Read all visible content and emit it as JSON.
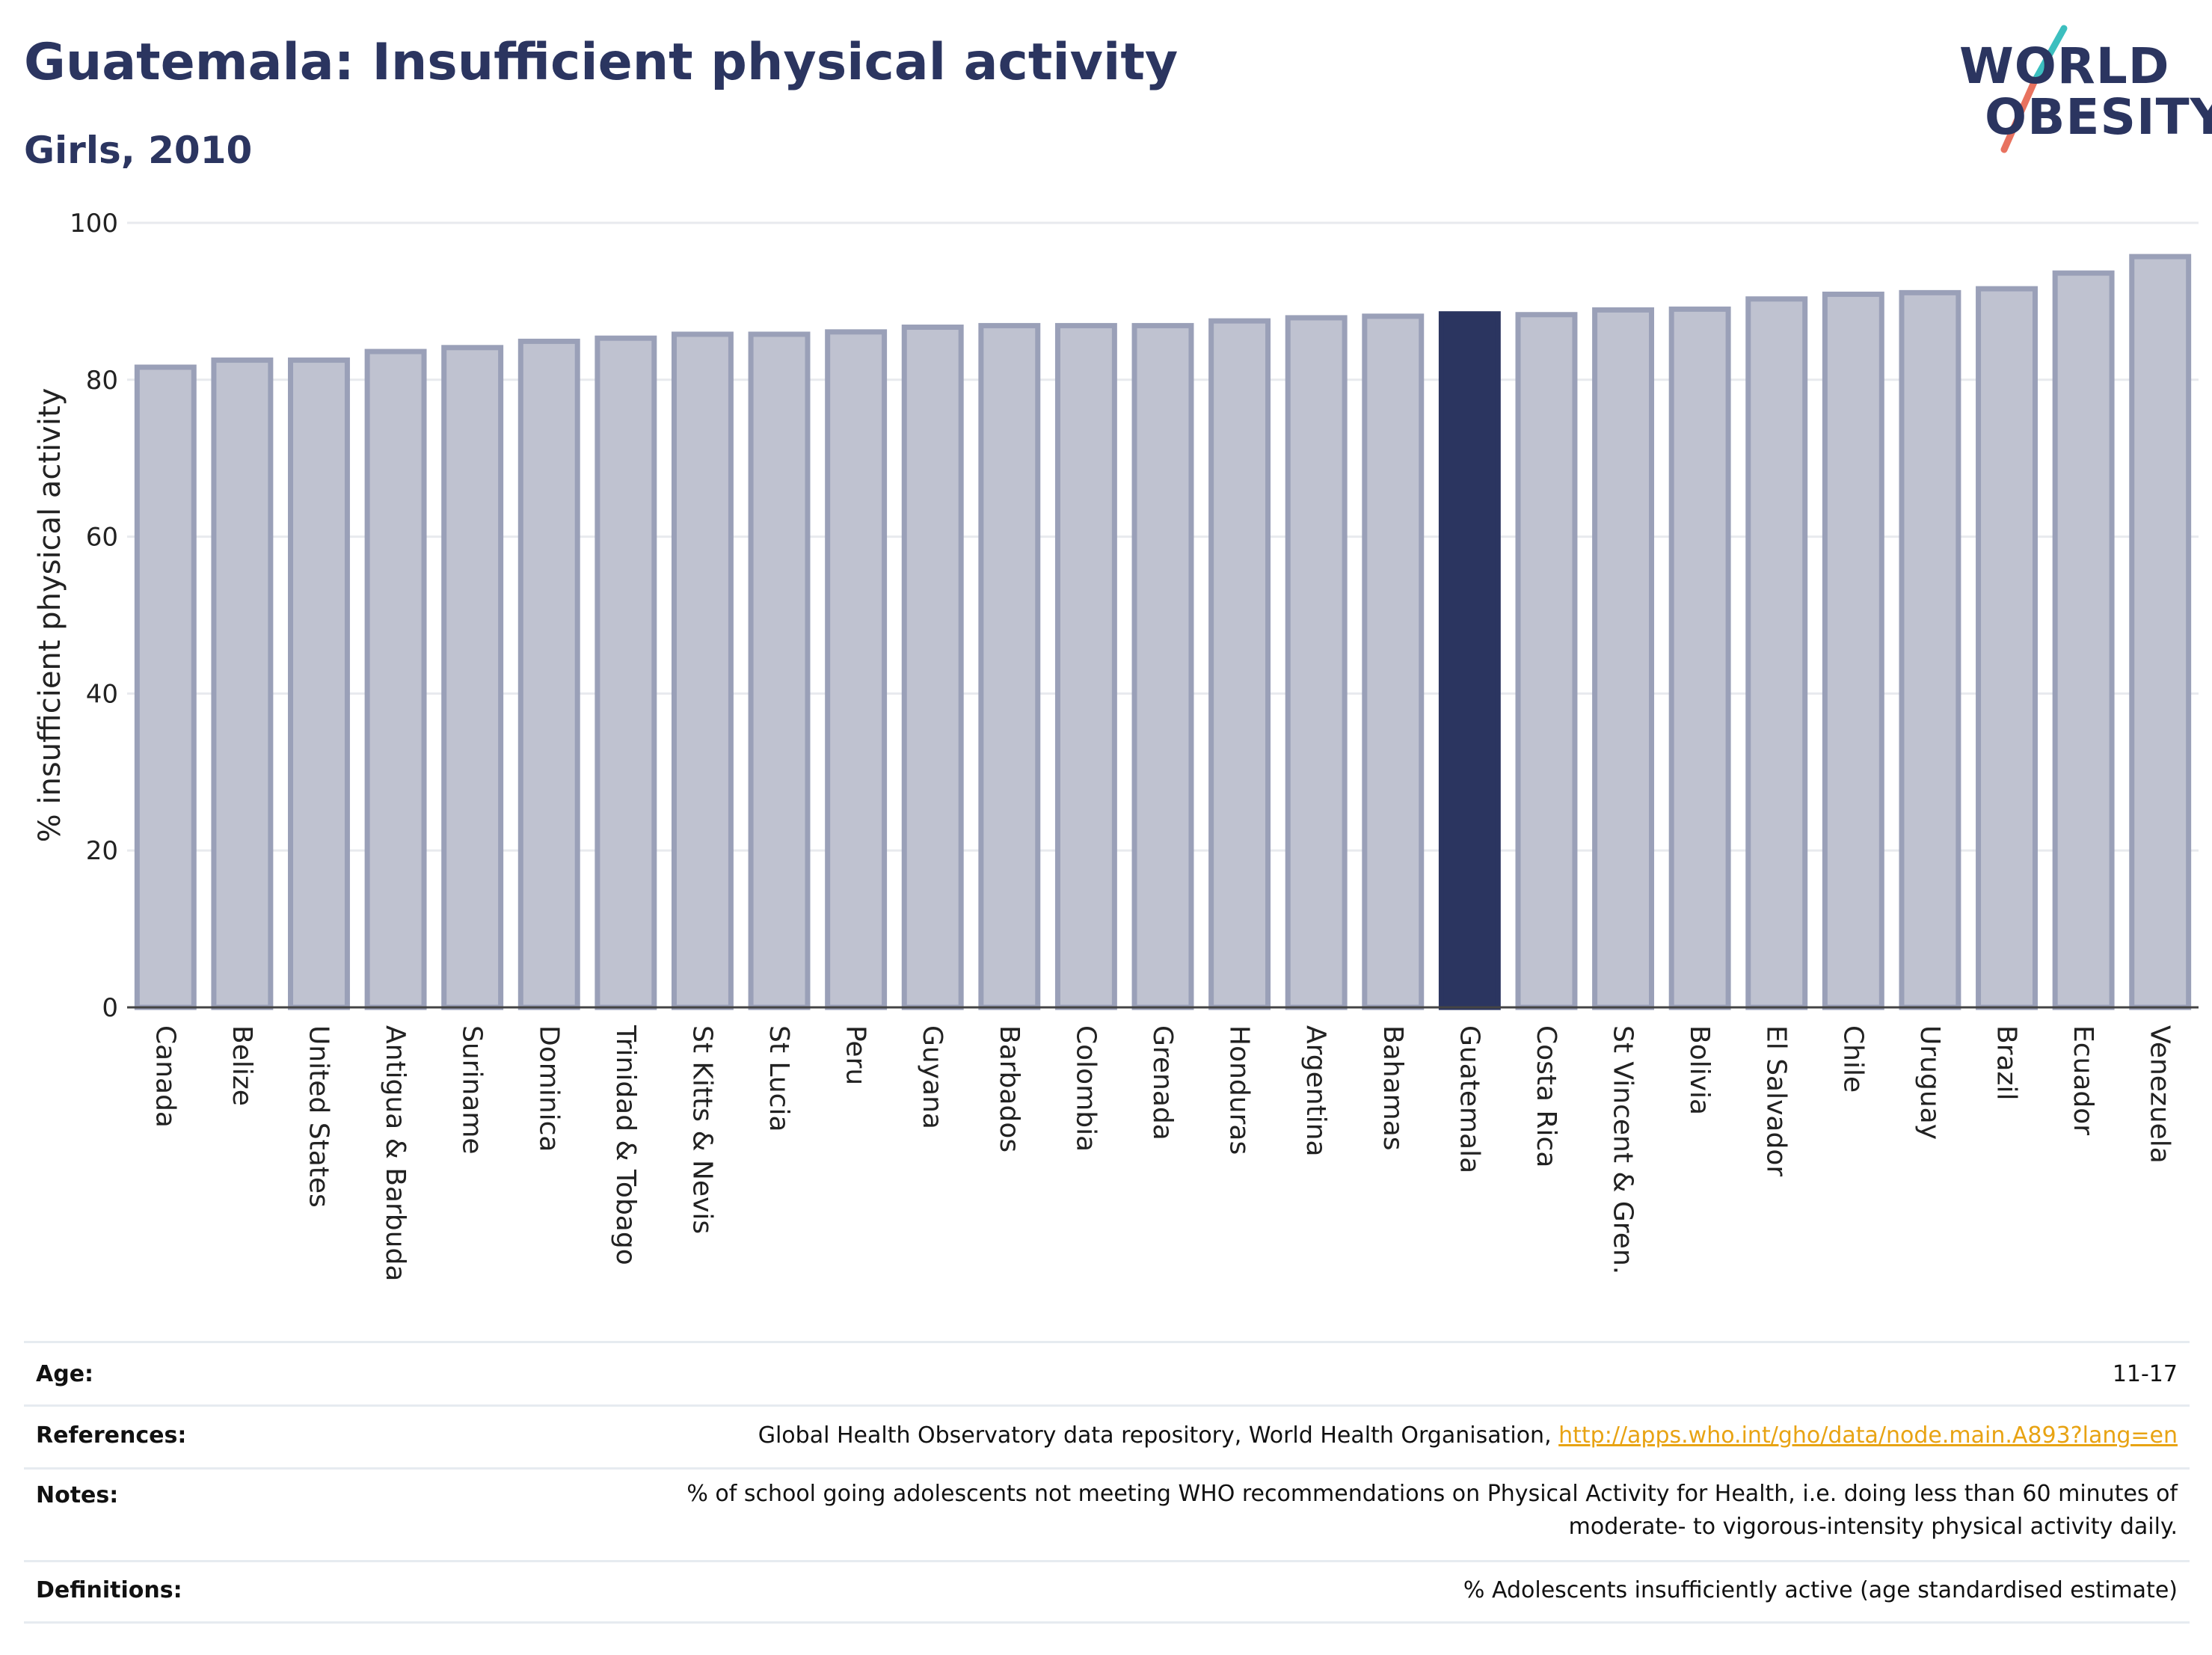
{
  "header": {
    "title": "Guatemala: Insufficient physical activity",
    "subtitle": "Girls, 2010"
  },
  "logo": {
    "line1": "WORLD",
    "line2": "OBESITY",
    "accent_colors": [
      "#3cbfbf",
      "#e8725f"
    ]
  },
  "colors": {
    "bar": "#bfc2d0",
    "bar_border": "#9aa0b8",
    "highlight": "#2b3560",
    "grid": "#e8eaee",
    "axis": "#444444"
  },
  "chart_data": {
    "type": "bar",
    "ylabel": "% insufficient physical activity",
    "ylim": [
      0,
      100
    ],
    "yticks": [
      0,
      20,
      40,
      60,
      80,
      100
    ],
    "highlight": "Guatemala",
    "categories": [
      "Canada",
      "Belize",
      "United States",
      "Antigua & Barbuda",
      "Suriname",
      "Dominica",
      "Trinidad & Tobago",
      "St Kitts & Nevis",
      "St Lucia",
      "Peru",
      "Guyana",
      "Barbados",
      "Colombia",
      "Grenada",
      "Honduras",
      "Argentina",
      "Bahamas",
      "Guatemala",
      "Costa Rica",
      "St Vincent & Gren.",
      "Bolivia",
      "El Salvador",
      "Chile",
      "Uruguay",
      "Brazil",
      "Ecuador",
      "Venezuela"
    ],
    "values": [
      81.6,
      82.5,
      82.5,
      83.6,
      84.1,
      84.9,
      85.3,
      85.8,
      85.8,
      86.1,
      86.7,
      86.9,
      86.9,
      86.9,
      87.5,
      87.9,
      88.1,
      88.4,
      88.3,
      88.9,
      89.0,
      90.3,
      90.9,
      91.1,
      91.6,
      93.6,
      95.7
    ],
    "grid": true
  },
  "meta": [
    {
      "key": "Age:",
      "value": "11-17"
    },
    {
      "key": "References:",
      "value": "Global Health Observatory data repository, World Health Organisation, ",
      "link": "http://apps.who.int/gho/data/node.main.A893?lang=en"
    },
    {
      "key": "Notes:",
      "value": "% of school going adolescents not meeting WHO recommendations on Physical Activity for Health, i.e. doing less than 60 minutes of moderate- to vigorous-intensity physical activity daily."
    },
    {
      "key": "Definitions:",
      "value": "% Adolescents insufficiently active (age standardised estimate)"
    }
  ]
}
